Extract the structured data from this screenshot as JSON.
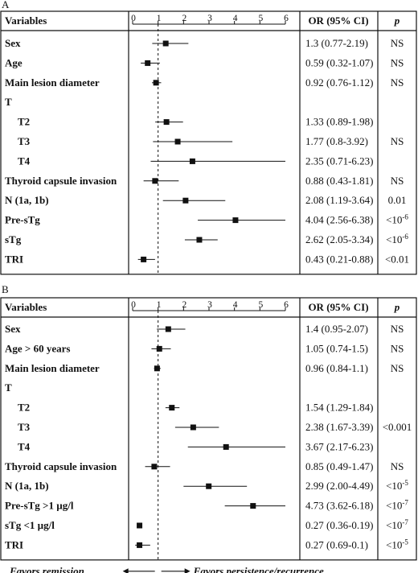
{
  "chart_data": [
    {
      "type": "forest",
      "panel_label": "A",
      "header": {
        "variables": "Variables",
        "or_ci": "OR (95% CI)",
        "p": "p"
      },
      "xticks": [
        "0",
        "1",
        "2",
        "3",
        "4",
        "5",
        "6"
      ],
      "xlim": [
        0,
        6
      ],
      "reference_line": 1,
      "rows": [
        {
          "label": "Sex",
          "indent": false,
          "or": 1.3,
          "lo": 0.77,
          "hi": 2.19,
          "or_ci_text": "1.3 (0.77-2.19)",
          "p": "NS"
        },
        {
          "label": "Age",
          "indent": false,
          "or": 0.59,
          "lo": 0.32,
          "hi": 1.07,
          "or_ci_text": "0.59 (0.32-1.07)",
          "p": "NS"
        },
        {
          "label": "Main lesion diameter",
          "indent": false,
          "or": 0.92,
          "lo": 0.76,
          "hi": 1.12,
          "or_ci_text": "0.92 (0.76-1.12)",
          "p": "NS"
        },
        {
          "label": "T",
          "indent": false
        },
        {
          "label": "T2",
          "indent": true,
          "or": 1.33,
          "lo": 0.89,
          "hi": 1.98,
          "or_ci_text": "1.33 (0.89-1.98)",
          "p": ""
        },
        {
          "label": "T3",
          "indent": true,
          "or": 1.77,
          "lo": 0.8,
          "hi": 3.92,
          "or_ci_text": "1.77 (0.8-3.92)",
          "p": "NS"
        },
        {
          "label": "T4",
          "indent": true,
          "or": 2.35,
          "lo": 0.71,
          "hi": 6.23,
          "or_ci_text": "2.35 (0.71-6.23)",
          "p": ""
        },
        {
          "label": "Thyroid capsule invasion",
          "indent": false,
          "or": 0.88,
          "lo": 0.43,
          "hi": 1.81,
          "or_ci_text": "0.88 (0.43-1.81)",
          "p": "NS"
        },
        {
          "label": "N (1a, 1b)",
          "indent": false,
          "or": 2.08,
          "lo": 1.19,
          "hi": 3.64,
          "or_ci_text": "2.08 (1.19-3.64)",
          "p": "0.01"
        },
        {
          "label": "Pre-sTg",
          "indent": false,
          "or": 4.04,
          "lo": 2.56,
          "hi": 6.38,
          "or_ci_text": "4.04 (2.56-6.38)",
          "p": "<10",
          "p_exp": "-6"
        },
        {
          "label": "sTg",
          "indent": false,
          "or": 2.62,
          "lo": 2.05,
          "hi": 3.34,
          "or_ci_text": "2.62 (2.05-3.34)",
          "p": "<10",
          "p_exp": "-6"
        },
        {
          "label": "TRI",
          "indent": false,
          "or": 0.43,
          "lo": 0.21,
          "hi": 0.88,
          "or_ci_text": "0.43 (0.21-0.88)",
          "p": "<0.01"
        }
      ]
    },
    {
      "type": "forest",
      "panel_label": "B",
      "header": {
        "variables": "Variables",
        "or_ci": "OR (95% CI)",
        "p": "p"
      },
      "xticks": [
        "0",
        "1",
        "2",
        "3",
        "4",
        "5",
        "6"
      ],
      "xlim": [
        0,
        6
      ],
      "reference_line": 1,
      "rows": [
        {
          "label": "Sex",
          "indent": false,
          "or": 1.4,
          "lo": 0.95,
          "hi": 2.07,
          "or_ci_text": "1.4 (0.95-2.07)",
          "p": "NS"
        },
        {
          "label": "Age > 60 years",
          "indent": false,
          "or": 1.05,
          "lo": 0.74,
          "hi": 1.5,
          "or_ci_text": "1.05 (0.74-1.5)",
          "p": "NS"
        },
        {
          "label": "Main lesion diameter",
          "indent": false,
          "or": 0.96,
          "lo": 0.84,
          "hi": 1.1,
          "or_ci_text": "0.96 (0.84-1.1)",
          "p": "NS"
        },
        {
          "label": "T",
          "indent": false
        },
        {
          "label": "T2",
          "indent": true,
          "or": 1.54,
          "lo": 1.29,
          "hi": 1.84,
          "or_ci_text": "1.54 (1.29-1.84)",
          "p": ""
        },
        {
          "label": "T3",
          "indent": true,
          "or": 2.38,
          "lo": 1.67,
          "hi": 3.39,
          "or_ci_text": "2.38 (1.67-3.39)",
          "p": "<0.001"
        },
        {
          "label": "T4",
          "indent": true,
          "or": 3.67,
          "lo": 2.17,
          "hi": 6.23,
          "or_ci_text": "3.67 (2.17-6.23)",
          "p": ""
        },
        {
          "label": "Thyroid capsule invasion",
          "indent": false,
          "or": 0.85,
          "lo": 0.49,
          "hi": 1.47,
          "or_ci_text": "0.85 (0.49-1.47)",
          "p": "NS"
        },
        {
          "label": "N (1a, 1b)",
          "indent": false,
          "or": 2.99,
          "lo": 2.0,
          "hi": 4.49,
          "or_ci_text": "2.99 (2.00-4.49)",
          "p": "<10",
          "p_exp": "-5"
        },
        {
          "label": "Pre-sTg >1 µg/l",
          "indent": false,
          "or": 4.73,
          "lo": 3.62,
          "hi": 6.18,
          "or_ci_text": "4.73 (3.62-6.18)",
          "p": "<10",
          "p_exp": "-7"
        },
        {
          "label": "sTg <1 µg/l",
          "indent": false,
          "or": 0.27,
          "lo": 0.19,
          "hi": 0.36,
          "or_ci_text": "0.27 (0.36-0.19)",
          "p": "<10",
          "p_exp": "-7"
        },
        {
          "label": "TRI",
          "indent": false,
          "or": 0.27,
          "lo": 0.1,
          "hi": 0.69,
          "or_ci_text": "0.27 (0.69-0.1)",
          "p": "<10",
          "p_exp": "-5"
        }
      ],
      "footer": {
        "left": "Favors remission",
        "right": "Favors persistence/recurrence"
      }
    }
  ]
}
